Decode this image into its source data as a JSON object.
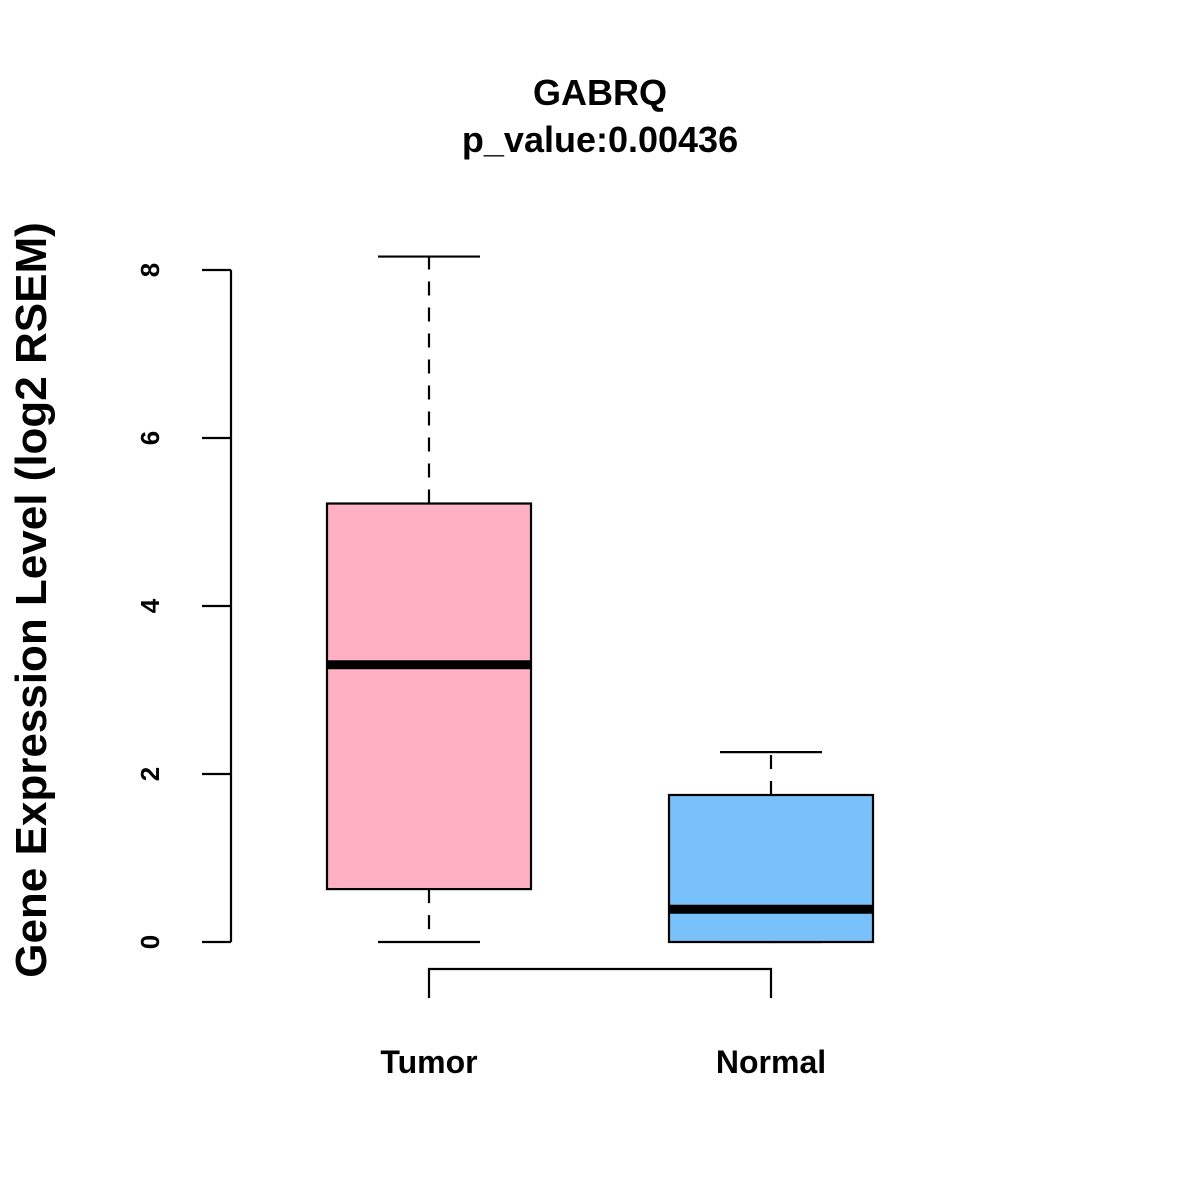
{
  "chart_data": {
    "type": "boxplot",
    "title": "GABRQ",
    "subtitle": "p_value:0.00436",
    "xlabel": "",
    "ylabel": "Gene Expression Level (log2 RSEM)",
    "ylim": [
      0,
      8
    ],
    "yticks": [
      0,
      2,
      4,
      6,
      8
    ],
    "ytick_labels": [
      "0",
      "2",
      "4",
      "6",
      "8"
    ],
    "categories": [
      "Tumor",
      "Normal"
    ],
    "series": [
      {
        "name": "Tumor",
        "color": "#ffb1c3",
        "whisker_low": 0,
        "q1": 0.63,
        "median": 3.3,
        "q3": 5.22,
        "whisker_high": 8.16
      },
      {
        "name": "Normal",
        "color": "#78c1fa",
        "whisker_low": 0,
        "q1": 0,
        "median": 0.39,
        "q3": 1.75,
        "whisker_high": 2.26
      }
    ],
    "comparison_bracket": [
      "Tumor",
      "Normal"
    ]
  }
}
